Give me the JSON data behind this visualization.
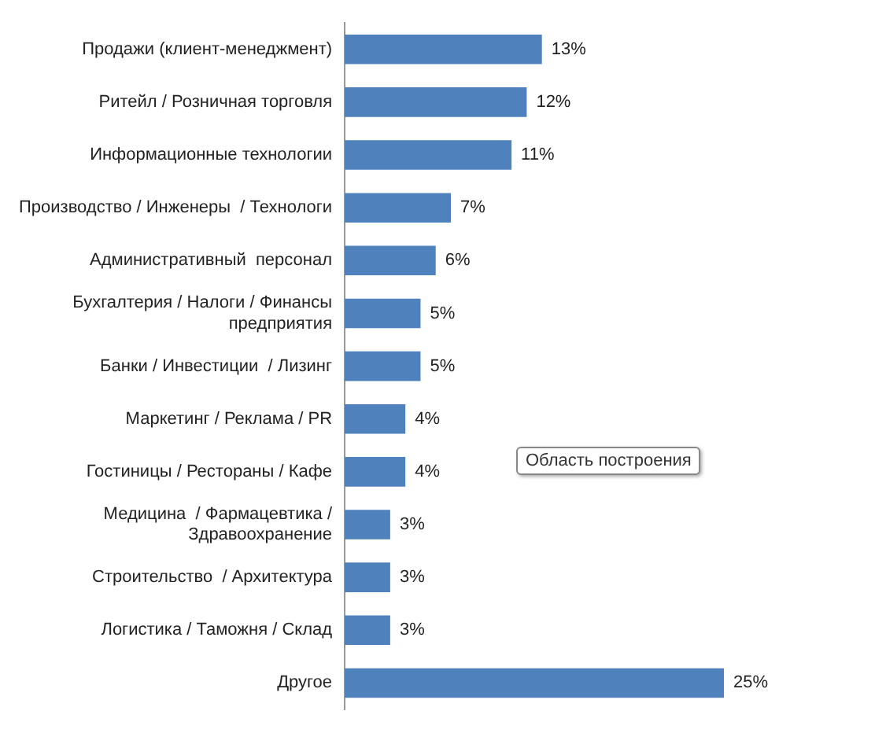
{
  "chart_data": {
    "type": "bar",
    "orientation": "horizontal",
    "categories": [
      "Продажи (клиент-менеджмент)",
      "Ритейл / Розничная торговля",
      "Информационные технологии",
      "Производство / Инженеры  / Технологи",
      "Административный  персонал",
      "Бухгалтерия / Налоги / Финансы предприятия",
      "Банки / Инвестиции  / Лизинг",
      "Маркетинг / Реклама / PR",
      "Гостиницы / Рестораны / Кафе",
      "Медицина  / Фармацевтика / Здравоохранение",
      "Строительство  / Архитектура",
      "Логистика / Таможня / Склад",
      "Другое"
    ],
    "values": [
      13,
      12,
      11,
      7,
      6,
      5,
      5,
      4,
      4,
      3,
      3,
      3,
      25
    ],
    "value_labels": [
      "13%",
      "12%",
      "11%",
      "7%",
      "6%",
      "5%",
      "5%",
      "4%",
      "4%",
      "3%",
      "3%",
      "3%",
      "25%"
    ],
    "color": "#4f81bd",
    "legend": false,
    "annotations": [
      "Область построения"
    ]
  }
}
